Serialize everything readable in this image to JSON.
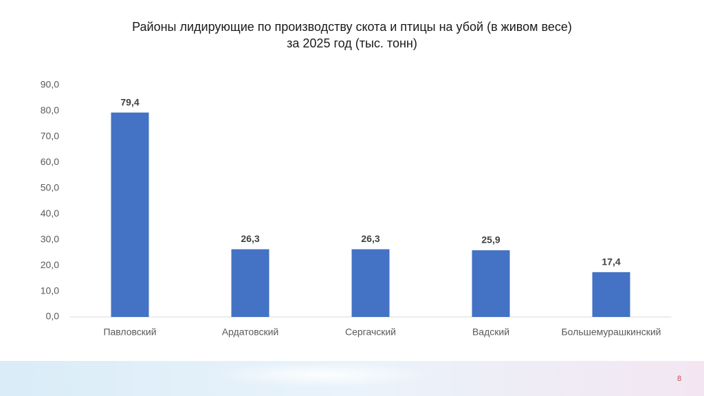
{
  "chart_data": {
    "type": "bar",
    "title": [
      "Районы лидирующие по производству скота и птицы на убой (в живом весе)",
      "за 2025 год (тыс. тонн)"
    ],
    "categories": [
      "Павловский",
      "Ардатовский",
      "Сергачский",
      "Вадский",
      "Большемурашкинский"
    ],
    "values": [
      79.4,
      26.3,
      26.3,
      25.9,
      17.4
    ],
    "value_labels": [
      "79,4",
      "26,3",
      "26,3",
      "25,9",
      "17,4"
    ],
    "color": "#4472c4",
    "ylim": [
      0,
      90
    ],
    "yticks": [
      {
        "value": 0,
        "label": "0,0"
      },
      {
        "value": 10,
        "label": "10,0"
      },
      {
        "value": 20,
        "label": "20,0"
      },
      {
        "value": 30,
        "label": "30,0"
      },
      {
        "value": 40,
        "label": "40,0"
      },
      {
        "value": 50,
        "label": "50,0"
      },
      {
        "value": 60,
        "label": "60,0"
      },
      {
        "value": 70,
        "label": "70,0"
      },
      {
        "value": 80,
        "label": "80,0"
      },
      {
        "value": 90,
        "label": "90,0"
      }
    ],
    "grid": false
  },
  "page_number": 8
}
